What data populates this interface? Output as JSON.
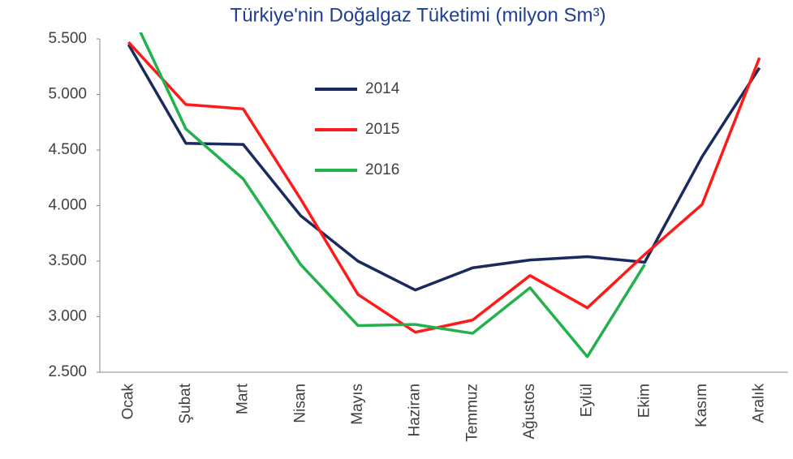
{
  "chart_data": {
    "type": "line",
    "title": "Türkiye'nin Doğalgaz Tüketimi (milyon Sm³)",
    "categories": [
      "Ocak",
      "Şubat",
      "Mart",
      "Nisan",
      "Mayıs",
      "Haziran",
      "Temmuz",
      "Ağustos",
      "Eylül",
      "Ekim",
      "Kasım",
      "Aralık"
    ],
    "series": [
      {
        "name": "2014",
        "color": "#1b2a5e",
        "values": [
          5450,
          4560,
          4550,
          3910,
          3500,
          3240,
          3440,
          3510,
          3540,
          3490,
          4440,
          5240
        ]
      },
      {
        "name": "2015",
        "color": "#ff1a1a",
        "values": [
          5470,
          4910,
          4870,
          4060,
          3200,
          2860,
          2970,
          3370,
          3080,
          3560,
          4010,
          5330
        ]
      },
      {
        "name": "2016",
        "color": "#22b14c",
        "values": [
          5790,
          4690,
          4240,
          3470,
          2920,
          2930,
          2850,
          3260,
          2640,
          3470,
          null,
          null
        ]
      }
    ],
    "ylim": [
      2500,
      5500
    ],
    "yticks": [
      {
        "value": 2500,
        "label": "2.500"
      },
      {
        "value": 3000,
        "label": "3.000"
      },
      {
        "value": 3500,
        "label": "3.500"
      },
      {
        "value": 4000,
        "label": "4.000"
      },
      {
        "value": 4500,
        "label": "4.500"
      },
      {
        "value": 5000,
        "label": "5.000"
      },
      {
        "value": 5500,
        "label": "5.500"
      }
    ],
    "grid": false,
    "legend": "inside"
  }
}
